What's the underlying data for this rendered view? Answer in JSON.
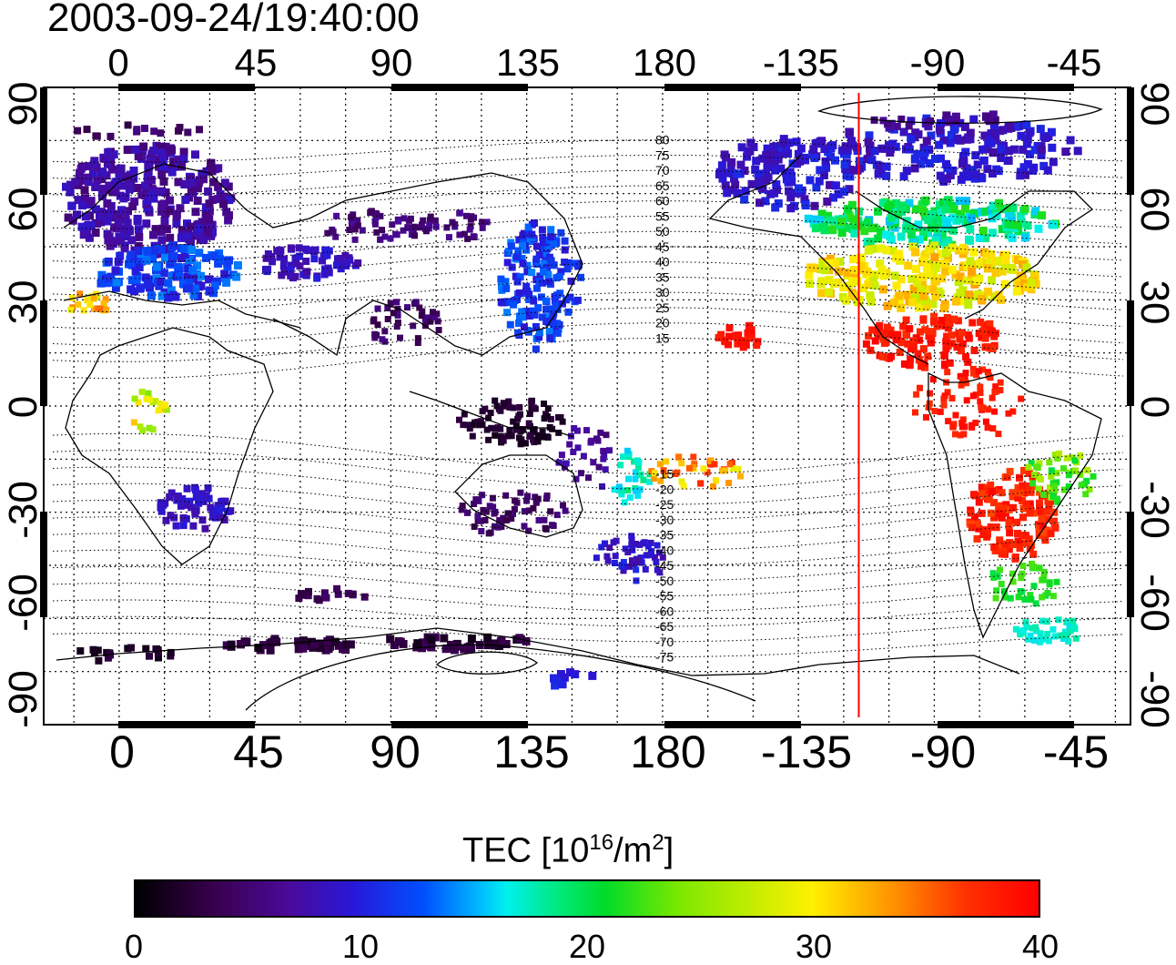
{
  "timestamp": "2003-09-24/19:40:00",
  "lon_labels": [
    "0",
    "45",
    "90",
    "135",
    "180",
    "-135",
    "-90",
    "-45"
  ],
  "lat_labels": [
    "90",
    "60",
    "30",
    "0",
    "-30",
    "-60",
    "-90"
  ],
  "contour_labels": [
    "80",
    "75",
    "70",
    "65",
    "60",
    "55",
    "50",
    "45",
    "40",
    "35",
    "30",
    "25",
    "20",
    "15",
    "-15",
    "-20",
    "-25",
    "-30",
    "-35",
    "-40",
    "-45",
    "-50",
    "-55",
    "-60",
    "-65",
    "-70",
    "-75"
  ],
  "colorbar": {
    "title": "TEC  [10",
    "title_exp": "16",
    "title_unit": "/m",
    "title_unit_exp": "2",
    "title_close": "]",
    "ticks": [
      "0",
      "10",
      "20",
      "30",
      "40"
    ],
    "range": [
      0,
      40
    ]
  },
  "colors": {
    "line": "#000000",
    "terminator": "#ff0000",
    "grid": "#000000"
  },
  "terminator_longitude": -115,
  "map_extent": {
    "lon_min": -25,
    "lon_max": 335,
    "lat_min": -90,
    "lat_max": 90
  }
}
